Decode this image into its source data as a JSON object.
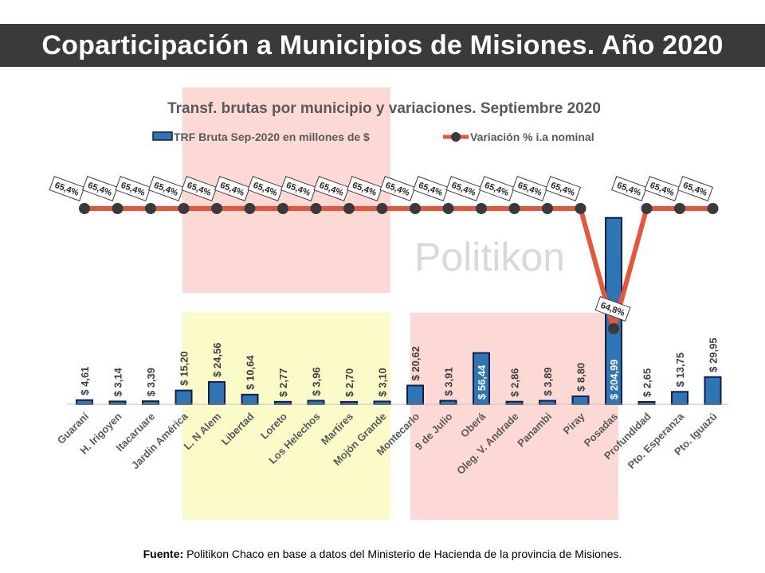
{
  "page": {
    "title": "Coparticipación a Municipios de Misiones. Año 2020",
    "source_label": "Fuente:",
    "source_text": "Politikon Chaco en base a datos del Ministerio de Hacienda de la provincia de Misiones."
  },
  "chart_data": {
    "type": "bar",
    "title": "Transf. brutas por municipio y variaciones. Septiembre 2020",
    "watermark": "Politikon",
    "legend": {
      "bar": "TRF Bruta Sep-2020 en millones de $",
      "line": "Variación % i.a nominal"
    },
    "categories": [
      "Guaraní",
      "H. Irigoyen",
      "Itacaruare",
      "Jardín América",
      "L. N Alem",
      "Libertad",
      "Loreto",
      "Los Helechos",
      "Martires",
      "Mojón Grande",
      "Montecarlo",
      "9 de Julio",
      "Oberá",
      "Oleg. V. Andrade",
      "Panambi",
      "Piray",
      "Posadas",
      "Profundidad",
      "Pto. Esperanza",
      "Pto. Iguazú"
    ],
    "series": [
      {
        "name": "TRF Bruta Sep-2020 en millones de $",
        "type": "bar",
        "values": [
          4.61,
          3.14,
          3.39,
          15.2,
          24.56,
          10.64,
          2.77,
          3.96,
          2.7,
          3.1,
          20.62,
          3.91,
          56.44,
          2.86,
          3.89,
          8.8,
          204.99,
          2.65,
          13.75,
          29.95
        ],
        "labels": [
          "$ 4,61",
          "$ 3,14",
          "$ 3,39",
          "$ 15,20",
          "$ 24,56",
          "$ 10,64",
          "$ 2,77",
          "$ 3,96",
          "$ 2,70",
          "$ 3,10",
          "$ 20,62",
          "$ 3,91",
          "$ 56,44",
          "$ 2,86",
          "$ 3,89",
          "$ 8,80",
          "$ 204,99",
          "$ 2,65",
          "$ 13,75",
          "$ 29,95"
        ]
      },
      {
        "name": "Variación % i.a nominal",
        "type": "line",
        "values": [
          65.4,
          65.4,
          65.4,
          65.4,
          65.4,
          65.4,
          65.4,
          65.4,
          65.4,
          65.4,
          65.4,
          65.4,
          65.4,
          65.4,
          65.4,
          65.4,
          64.8,
          65.4,
          65.4,
          65.4
        ],
        "labels": [
          "65,4%",
          "65,4%",
          "65,4%",
          "65,4%",
          "65,4%",
          "65,4%",
          "65,4%",
          "65,4%",
          "65,4%",
          "65,4%",
          "65,4%",
          "65,4%",
          "65,4%",
          "65,4%",
          "65,4%",
          "65,4%",
          "64,8%",
          "65,4%",
          "65,4%",
          "65,4%"
        ]
      }
    ],
    "colors": {
      "bar_fill": "#2e75b6",
      "bar_stroke": "#0d1f4a",
      "line": "#e8553a",
      "marker": "#3a3a3a",
      "pink_band": "#fdd9d6",
      "yellow_band": "#fbfbc9",
      "watermark": "#d9d9d9"
    }
  }
}
